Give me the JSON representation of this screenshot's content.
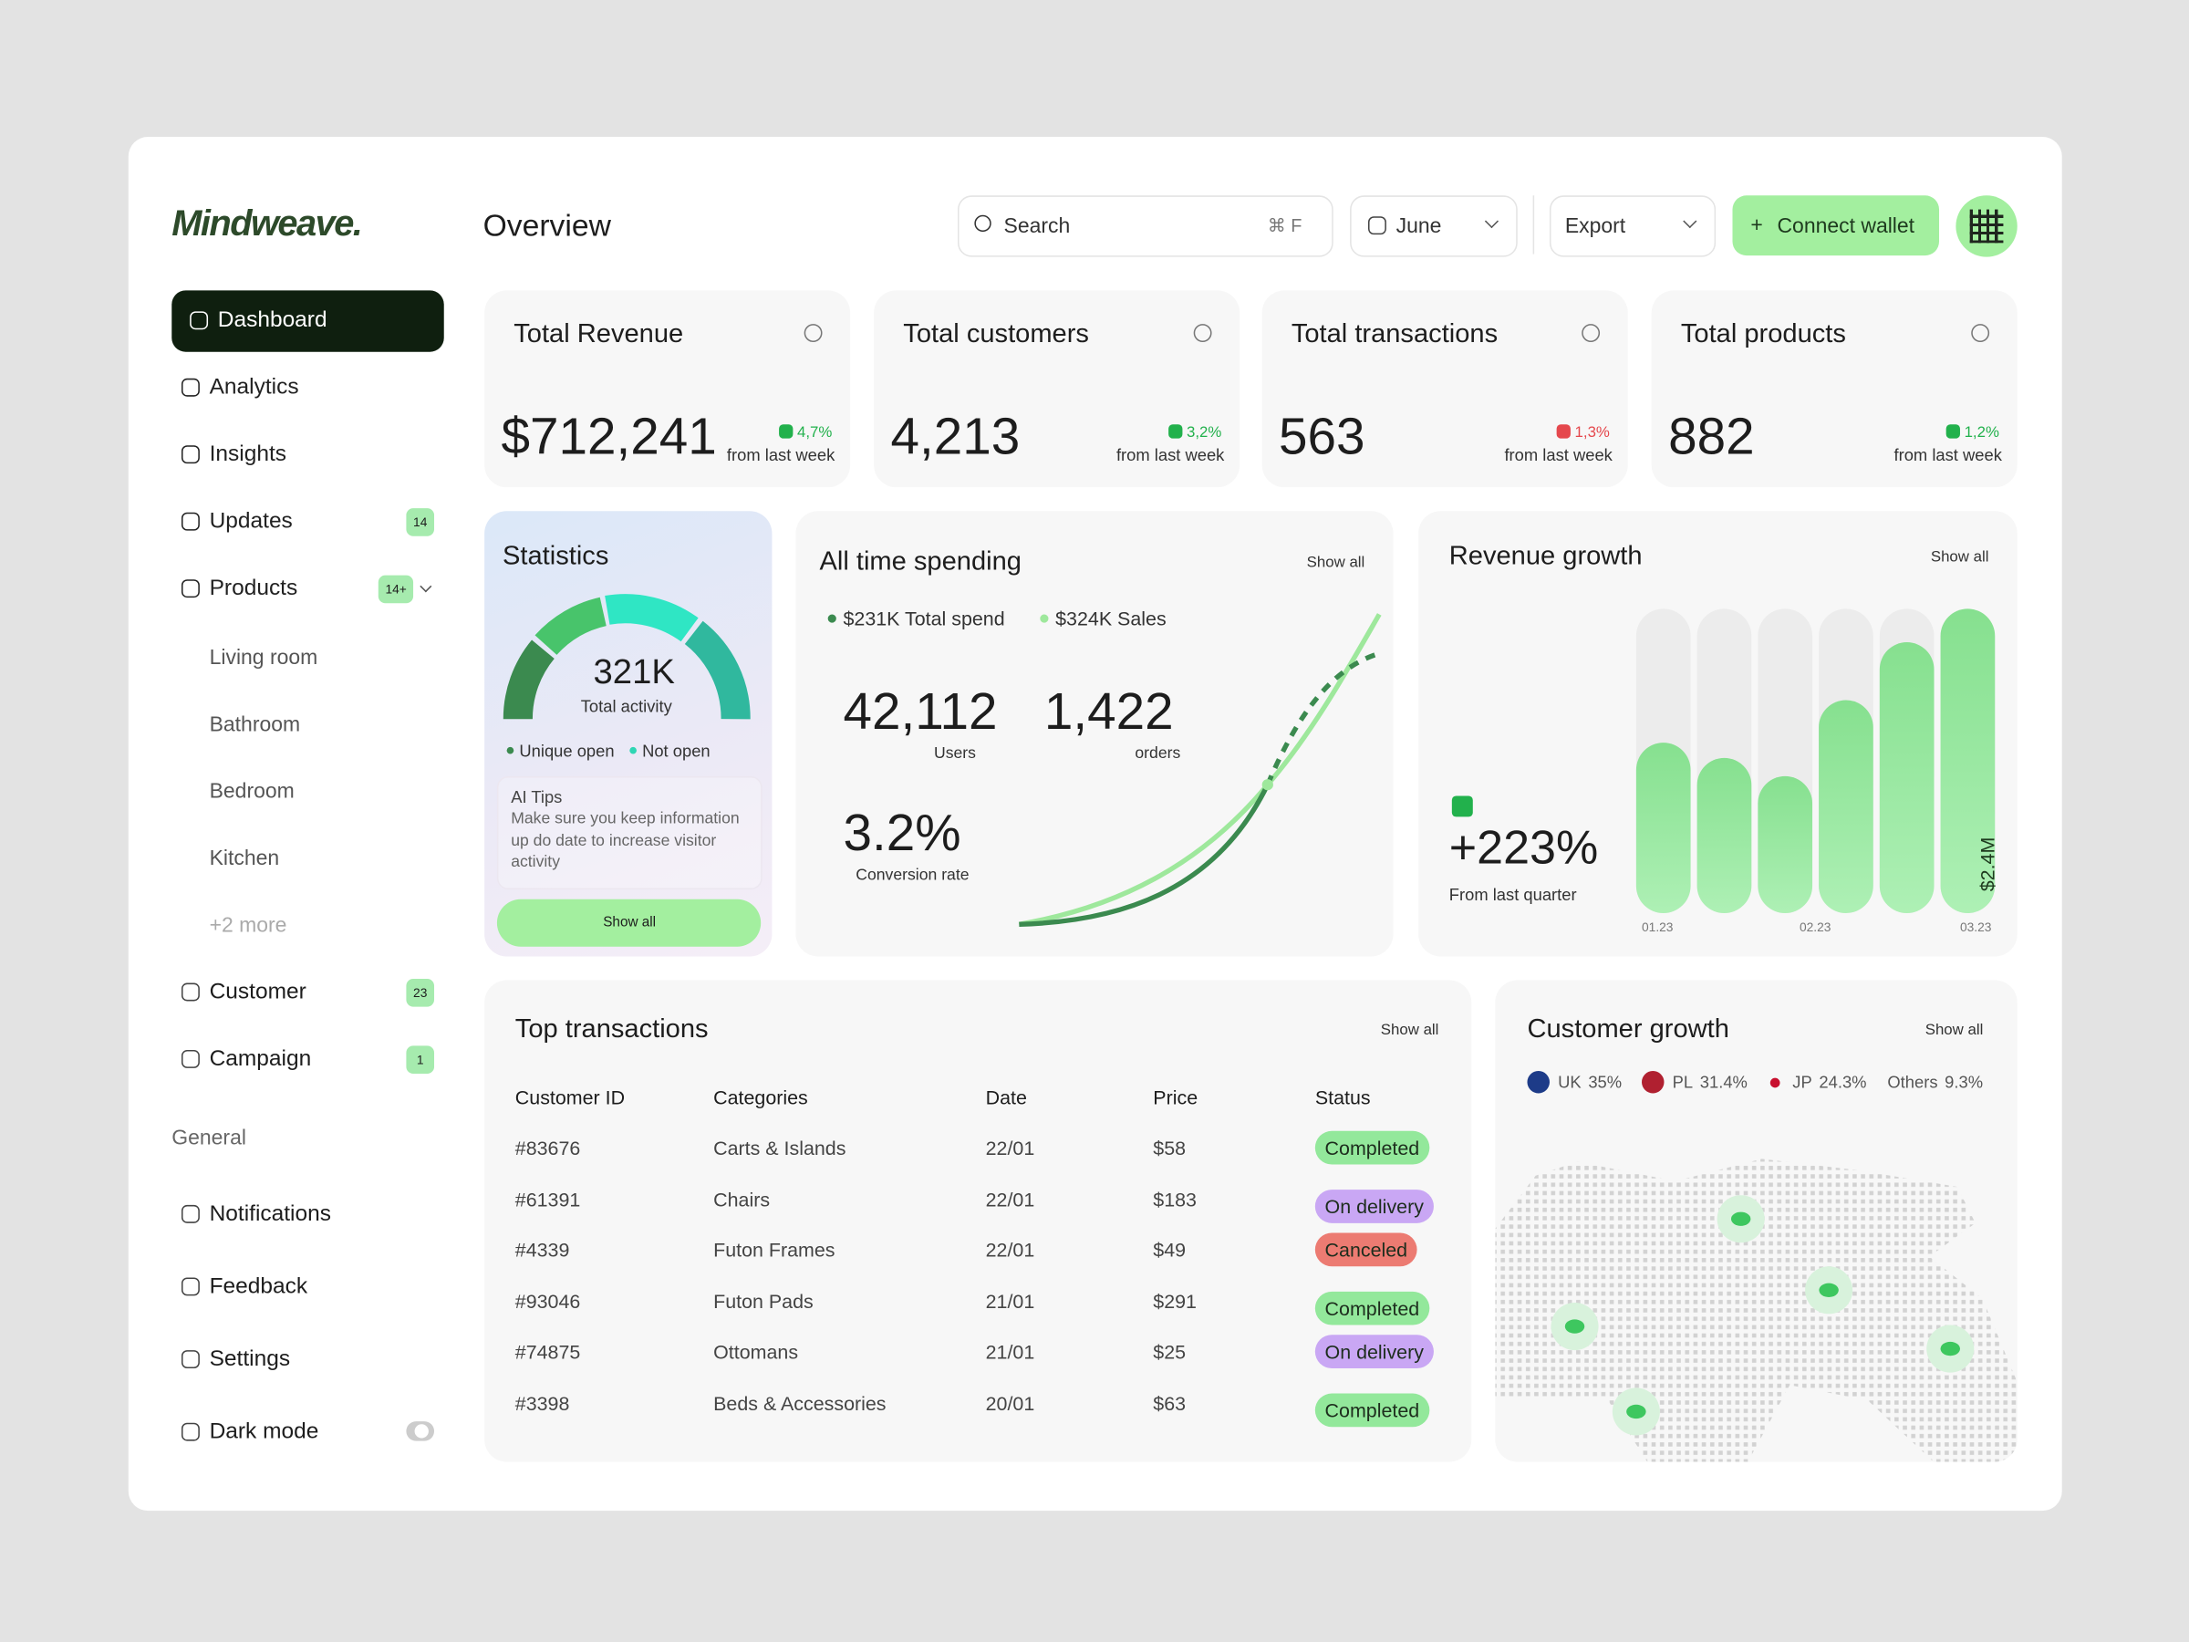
{
  "brand": "Mindweave.",
  "header": {
    "title": "Overview",
    "search": "Search",
    "shortcut": "⌘ F",
    "month": "June",
    "export": "Export",
    "connect": "Connect wallet"
  },
  "sidebar": {
    "nav": [
      {
        "label": "Dashboard"
      },
      {
        "label": "Analytics"
      },
      {
        "label": "Insights"
      },
      {
        "label": "Updates",
        "badge": 14
      },
      {
        "label": "Products",
        "badge": "14+"
      }
    ],
    "products_sub": [
      "Living room",
      "Bathroom",
      "Bedroom",
      "Kitchen",
      "+2 more"
    ],
    "nav2": [
      {
        "label": "Customer",
        "badge": 23
      },
      {
        "label": "Campaign",
        "badge": 1
      }
    ],
    "general_title": "General",
    "general": [
      "Notifications",
      "Feedback",
      "Settings",
      "Dark mode"
    ]
  },
  "kpis": [
    {
      "title": "Total Revenue",
      "value": "$712,241",
      "change": "4,7%",
      "note": "from last week",
      "color": "#22b14c"
    },
    {
      "title": "Total customers",
      "value": "4,213",
      "change": "3,2%",
      "note": "from last week",
      "color": "#22b14c"
    },
    {
      "title": "Total transactions",
      "value": "563",
      "change": "1,3%",
      "note": "from last week",
      "color": "#e5484d"
    },
    {
      "title": "Total products",
      "value": "882",
      "change": "1,2%",
      "note": "from last week",
      "color": "#22b14c"
    }
  ],
  "statistics": {
    "title": "Statistics",
    "value": "321K",
    "label": "Total activity",
    "legend": [
      "Unique open",
      "Not open"
    ],
    "tips_title": "AI Tips",
    "tips": "Make sure you keep information up do date to increase visitor activity",
    "button": "Show all"
  },
  "spending": {
    "title": "All time spending",
    "show_all": "Show all",
    "legend": [
      "$231K Total spend",
      "$324K Sales"
    ],
    "stats": [
      {
        "value": "42,112",
        "label": "Users"
      },
      {
        "value": "1,422",
        "label": "orders"
      },
      {
        "value": "3.2%",
        "label": "Conversion rate"
      }
    ]
  },
  "revenue_growth": {
    "title": "Revenue growth",
    "show_all": "Show all",
    "value": "+223%",
    "label": "From last quarter",
    "bar_label": "$2.4M",
    "x_labels": [
      "01.23",
      "02.23",
      "03.23"
    ],
    "bars": [
      56,
      51,
      45,
      70,
      89,
      100
    ]
  },
  "transactions": {
    "title": "Top transactions",
    "show_all": "Show all",
    "columns": [
      "Customer ID",
      "Categories",
      "Date",
      "Price",
      "Status"
    ],
    "rows": [
      {
        "id": "#83676",
        "category": "Carts & Islands",
        "date": "22/01",
        "price": "$58",
        "status": "Completed",
        "status_color": "#93e89b"
      },
      {
        "id": "#61391",
        "category": "Chairs",
        "date": "22/01",
        "price": "$183",
        "status": "On delivery",
        "status_color": "#c9a7f4"
      },
      {
        "id": "#4339",
        "category": "Futon Frames",
        "date": "22/01",
        "price": "$49",
        "status": "Canceled",
        "status_color": "#ec7b72"
      },
      {
        "id": "#93046",
        "category": "Futon Pads",
        "date": "21/01",
        "price": "$291",
        "status": "Completed",
        "status_color": "#93e89b"
      },
      {
        "id": "#74875",
        "category": "Ottomans",
        "date": "21/01",
        "price": "$25",
        "status": "On delivery",
        "status_color": "#c9a7f4"
      },
      {
        "id": "#3398",
        "category": "Beds & Accessories",
        "date": "20/01",
        "price": "$63",
        "status": "Completed",
        "status_color": "#93e89b"
      }
    ]
  },
  "customer_growth": {
    "title": "Customer growth",
    "show_all": "Show all",
    "legend": [
      {
        "label": "UK",
        "value": "35%"
      },
      {
        "label": "PL",
        "value": "31.4%"
      },
      {
        "label": "JP",
        "value": "24.3%"
      },
      {
        "label": "Others",
        "value": "9.3%"
      }
    ]
  }
}
